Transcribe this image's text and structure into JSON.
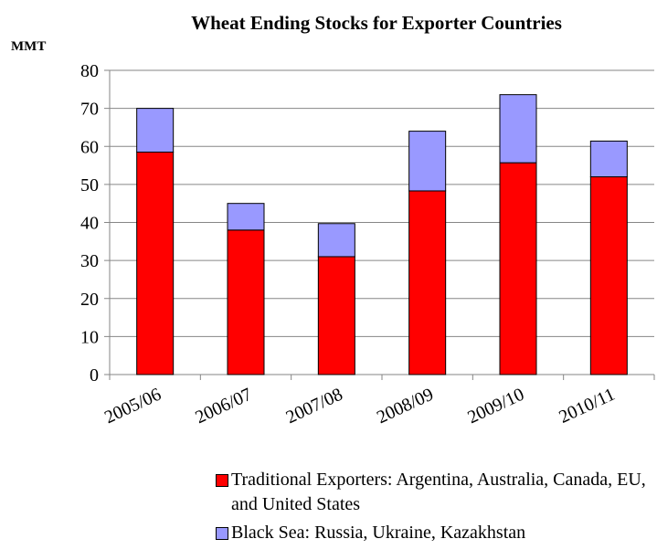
{
  "chart_data": {
    "type": "stacked_bar",
    "title": "Wheat Ending Stocks for Exporter Countries",
    "y_label": "MMT",
    "categories": [
      "2005/06",
      "2006/07",
      "2007/08",
      "2008/09",
      "2009/10",
      "2010/11"
    ],
    "series": [
      {
        "name": "Traditional Exporters: Argentina, Australia, Canada, EU, and United States",
        "color": "#ff0000",
        "values": [
          58.5,
          38,
          31,
          48.3,
          55.7,
          52
        ]
      },
      {
        "name": "Black Sea: Russia, Ukraine, Kazakhstan",
        "color": "#9999ff",
        "values": [
          11.5,
          7,
          8.7,
          15.7,
          17.9,
          9.4
        ]
      }
    ],
    "ylim": [
      0,
      80
    ],
    "yticks": [
      0,
      10,
      20,
      30,
      40,
      50,
      60,
      70,
      80
    ],
    "grid": true,
    "legend": "bottom"
  }
}
